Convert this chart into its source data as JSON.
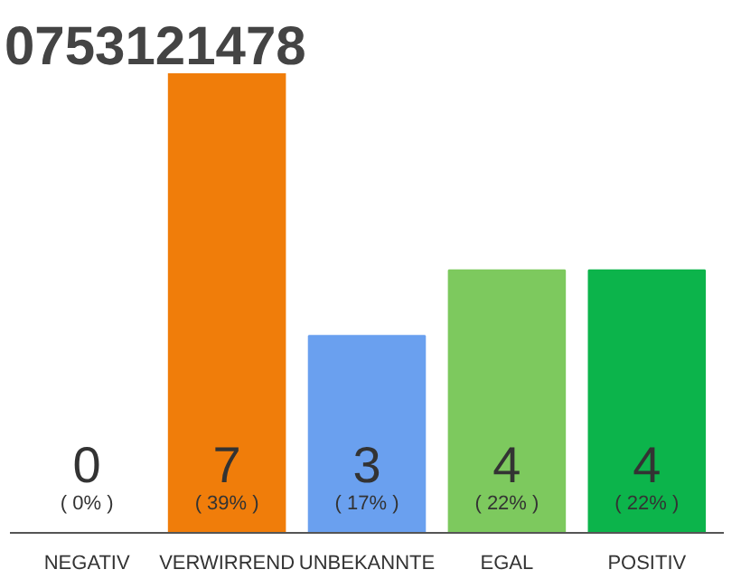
{
  "chart_data": {
    "type": "bar",
    "title": "0753121478",
    "categories": [
      "NEGATIV",
      "VERWIRREND",
      "UNBEKANNTE",
      "EGAL",
      "POSITIV"
    ],
    "values": [
      0,
      7,
      3,
      4,
      4
    ],
    "colors": [
      "#cccccc",
      "#f07d0a",
      "#6aa0ef",
      "#7dc95e",
      "#0cb44b"
    ],
    "data_labels": true,
    "annotations": [
      "( 0% )",
      "( 39% )",
      "( 17% )",
      "( 22% )",
      "( 22% )"
    ],
    "grid": false
  }
}
